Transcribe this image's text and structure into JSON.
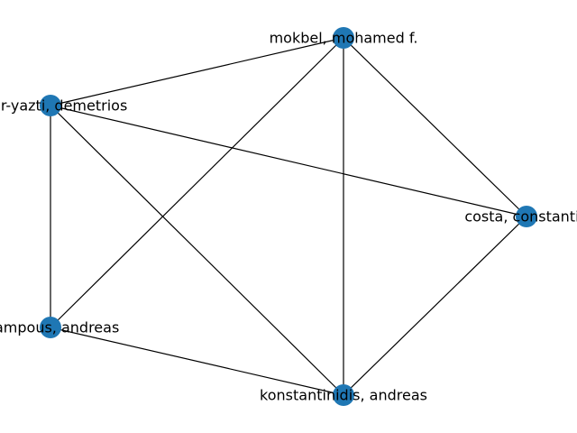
{
  "graph": {
    "node_color": "#1f77b4",
    "edge_color": "#000000",
    "nodes": [
      {
        "id": "mokbel",
        "label": "mokbel, mohamed f."
      },
      {
        "id": "pour",
        "label": "pour-yazti, demetrios"
      },
      {
        "id": "costa",
        "label": "costa, constantin"
      },
      {
        "id": "lampous",
        "label": "alampous, andreas"
      },
      {
        "id": "konst",
        "label": "konstantinidis, andreas"
      }
    ],
    "edges": [
      [
        "mokbel",
        "pour"
      ],
      [
        "mokbel",
        "costa"
      ],
      [
        "mokbel",
        "konst"
      ],
      [
        "mokbel",
        "lampous"
      ],
      [
        "pour",
        "costa"
      ],
      [
        "pour",
        "lampous"
      ],
      [
        "pour",
        "konst"
      ],
      [
        "costa",
        "konst"
      ],
      [
        "lampous",
        "konst"
      ]
    ]
  }
}
